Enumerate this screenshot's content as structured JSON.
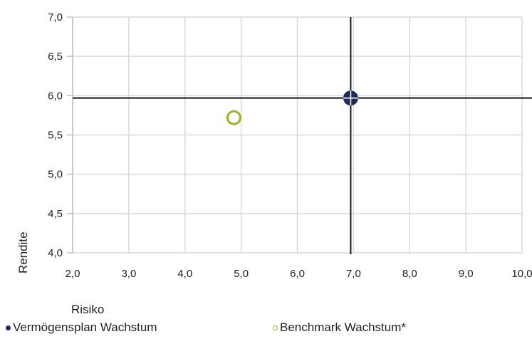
{
  "chart_data": {
    "type": "scatter",
    "xlabel": "Risiko",
    "ylabel": "Rendite",
    "xlim": [
      2.0,
      10.0
    ],
    "ylim": [
      4.0,
      7.0
    ],
    "x_ticks": [
      "2,0",
      "3,0",
      "4,0",
      "5,0",
      "6,0",
      "7,0",
      "8,0",
      "9,0",
      "10,0"
    ],
    "y_ticks": [
      "4,0",
      "4,5",
      "5,0",
      "5,5",
      "6,0",
      "6,5",
      "7,0"
    ],
    "grid": true,
    "legend_position": "bottom",
    "crosshair": {
      "x": 6.95,
      "y": 5.97
    },
    "series": [
      {
        "name": "Vermögensplan Wachstum",
        "color": "#1f2a5c",
        "marker": "filled-circle",
        "points": [
          {
            "x": 6.95,
            "y": 5.97
          }
        ]
      },
      {
        "name": "Benchmark Wachstum*",
        "color": "#9bb51e",
        "marker": "hollow-circle",
        "points": [
          {
            "x": 4.87,
            "y": 5.72
          }
        ]
      }
    ]
  }
}
